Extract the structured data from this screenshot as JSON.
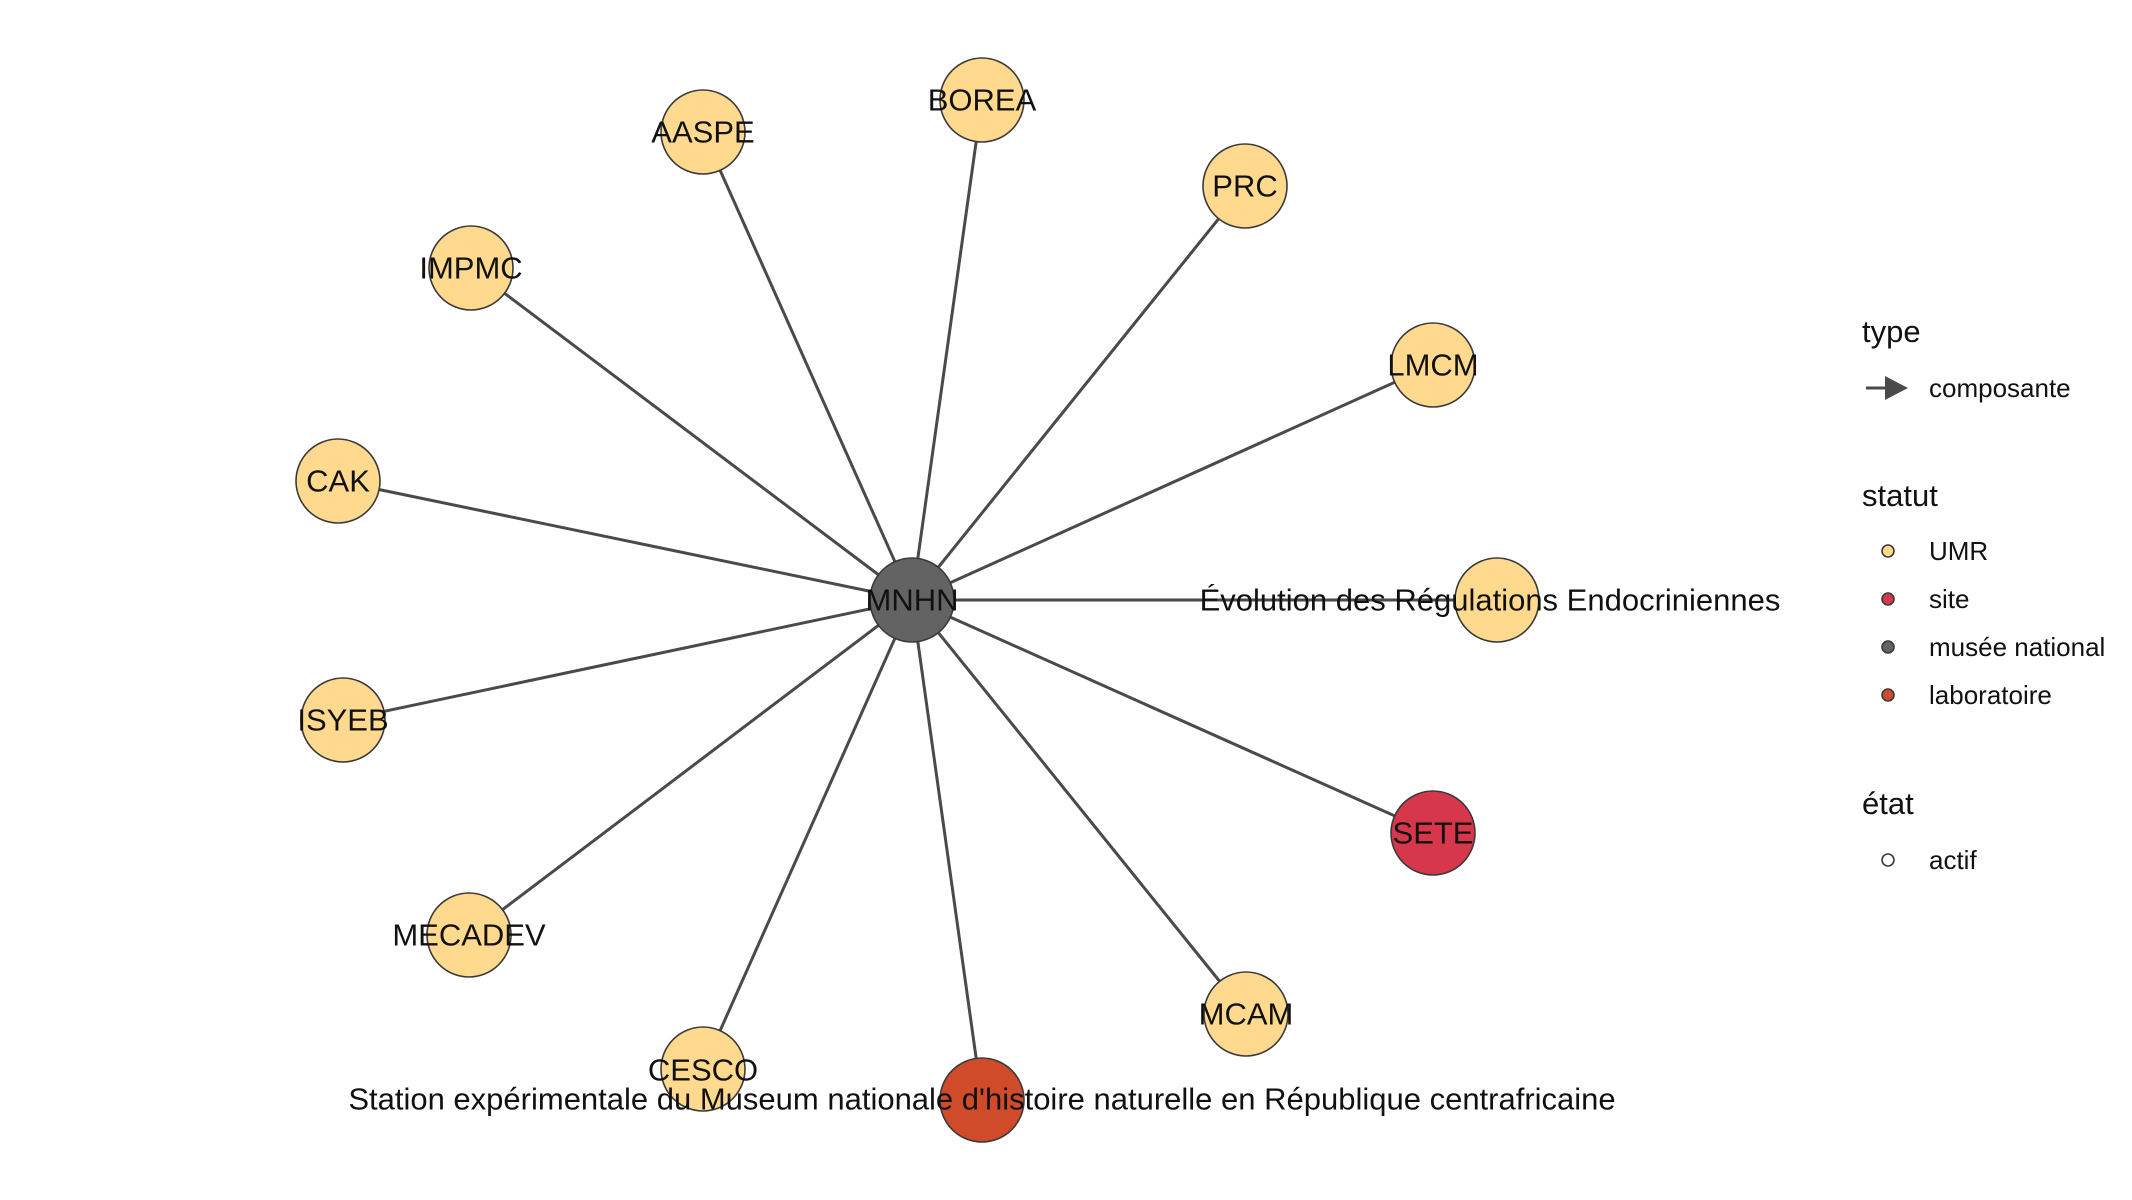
{
  "colors": {
    "UMR": "#fed98e",
    "site": "#d7374a",
    "musee_national": "#636363",
    "laboratoire": "#cf4b2a",
    "edge": "#4a4a4a"
  },
  "nodes": [
    {
      "id": "mnhn",
      "label": "MNHN",
      "statut": "musée national"
    },
    {
      "id": "borea",
      "label": "BOREA",
      "statut": "UMR"
    },
    {
      "id": "aaspe",
      "label": "AASPE",
      "statut": "UMR"
    },
    {
      "id": "prc",
      "label": "PRC",
      "statut": "UMR"
    },
    {
      "id": "impmc",
      "label": "IMPMC",
      "statut": "UMR"
    },
    {
      "id": "lmcm",
      "label": "LMCM",
      "statut": "UMR"
    },
    {
      "id": "cak",
      "label": "CAK",
      "statut": "UMR"
    },
    {
      "id": "evol",
      "label": "Évolution des Régulations Endocriniennes",
      "statut": "UMR"
    },
    {
      "id": "isyeb",
      "label": "ISYEB",
      "statut": "UMR"
    },
    {
      "id": "sete",
      "label": "SETE",
      "statut": "site"
    },
    {
      "id": "mecadev",
      "label": "MECADEV",
      "statut": "UMR"
    },
    {
      "id": "mcam",
      "label": "MCAM",
      "statut": "UMR"
    },
    {
      "id": "cesco",
      "label": "CESCO",
      "statut": "UMR"
    },
    {
      "id": "station",
      "label": "Station expérimentale du Museum nationale d'histoire naturelle en République centrafricaine",
      "statut": "laboratoire"
    }
  ],
  "edges": [
    {
      "from": "mnhn",
      "to": "borea",
      "type": "composante"
    },
    {
      "from": "mnhn",
      "to": "aaspe",
      "type": "composante"
    },
    {
      "from": "mnhn",
      "to": "prc",
      "type": "composante"
    },
    {
      "from": "mnhn",
      "to": "impmc",
      "type": "composante"
    },
    {
      "from": "mnhn",
      "to": "lmcm",
      "type": "composante"
    },
    {
      "from": "mnhn",
      "to": "cak",
      "type": "composante"
    },
    {
      "from": "mnhn",
      "to": "evol",
      "type": "composante"
    },
    {
      "from": "mnhn",
      "to": "isyeb",
      "type": "composante"
    },
    {
      "from": "mnhn",
      "to": "sete",
      "type": "composante"
    },
    {
      "from": "mnhn",
      "to": "mecadev",
      "type": "composante"
    },
    {
      "from": "mnhn",
      "to": "mcam",
      "type": "composante"
    },
    {
      "from": "mnhn",
      "to": "cesco",
      "type": "composante"
    },
    {
      "from": "mnhn",
      "to": "station",
      "type": "composante"
    }
  ],
  "legend": {
    "type": {
      "title": "type",
      "items": [
        {
          "label": "composante"
        }
      ]
    },
    "statut": {
      "title": "statut",
      "items": [
        {
          "label": "UMR",
          "color": "#fed98e"
        },
        {
          "label": "site",
          "color": "#d7374a"
        },
        {
          "label": "musée national",
          "color": "#636363"
        },
        {
          "label": "laboratoire",
          "color": "#cf4b2a"
        }
      ]
    },
    "etat": {
      "title": "état",
      "items": [
        {
          "label": "actif"
        }
      ]
    }
  }
}
